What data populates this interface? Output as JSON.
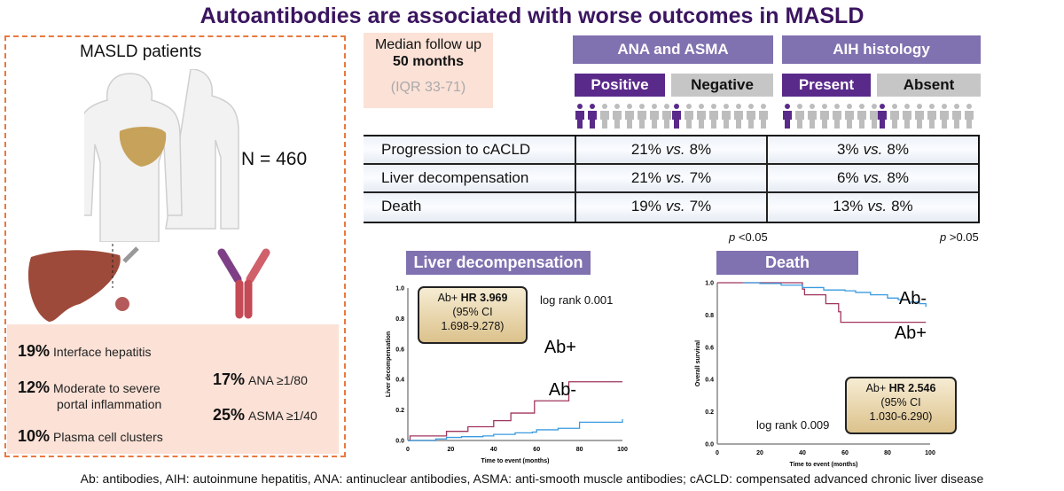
{
  "title": "Autoantibodies are associated with worse outcomes in MASLD",
  "left": {
    "heading": "MASLD patients",
    "n_label": "N = 460",
    "histology": [
      {
        "pct": "19%",
        "label": "Interface hepatitis"
      },
      {
        "pct": "12%",
        "label": "Moderate to severe",
        "label2": "portal inflammation"
      },
      {
        "pct": "10%",
        "label": "Plasma cell clusters"
      }
    ],
    "antibodies": [
      {
        "pct": "17%",
        "label": "ANA ≥1/80"
      },
      {
        "pct": "25%",
        "label": "ASMA ≥1/40"
      }
    ]
  },
  "followup": {
    "line1": "Median follow up",
    "line2": "50 months",
    "line3": "(IQR 33-71)"
  },
  "groups": [
    {
      "header": "ANA and ASMA",
      "sub": [
        "Positive",
        "Negative"
      ],
      "highlighted": [
        2,
        1
      ],
      "p": "p",
      "p_val": " <0.05"
    },
    {
      "header": "AIH histology",
      "sub": [
        "Present",
        "Absent"
      ],
      "highlighted": [
        1,
        1
      ],
      "p": "p",
      "p_val": " >0.05"
    }
  ],
  "table": {
    "vs": "vs.",
    "rows": [
      {
        "label": "Progression to cACLD",
        "g1": [
          "21%",
          "8%"
        ],
        "g2": [
          "3%",
          "8%"
        ]
      },
      {
        "label": "Liver decompensation",
        "g1": [
          "21%",
          "7%"
        ],
        "g2": [
          "6%",
          "8%"
        ]
      },
      {
        "label": "Death",
        "g1": [
          "19%",
          "7%"
        ],
        "g2": [
          "13%",
          "8%"
        ]
      }
    ]
  },
  "chart_data": [
    {
      "type": "line",
      "title": "Liver decompensation",
      "xlabel": "Time to event (months)",
      "ylabel": "Liver decompensation",
      "xlim": [
        0,
        100
      ],
      "ylim": [
        0,
        1
      ],
      "xticks": [
        "0",
        "20",
        "40",
        "60",
        "80",
        "100"
      ],
      "yticks": [
        "0.0",
        "0.2",
        "0.4",
        "0.6",
        "0.8",
        "1.0"
      ],
      "hr": {
        "prefix": "Ab+ ",
        "bold": "HR 3.969",
        "ci1": "(95% CI",
        "ci2": "1.698-9.278)"
      },
      "logrank": "log rank 0.001",
      "series": [
        {
          "name": "Ab+",
          "color": "#a0365e",
          "x": [
            0,
            1,
            18,
            28,
            40,
            48,
            59,
            75,
            100
          ],
          "y": [
            0,
            0.03,
            0.06,
            0.09,
            0.13,
            0.18,
            0.26,
            0.385,
            0.385
          ]
        },
        {
          "name": "Ab-",
          "color": "#3a9be0",
          "x": [
            0,
            13,
            18,
            25,
            35,
            40,
            50,
            58,
            60,
            70,
            80,
            98,
            100
          ],
          "y": [
            0,
            0.01,
            0.02,
            0.025,
            0.03,
            0.04,
            0.05,
            0.055,
            0.07,
            0.08,
            0.12,
            0.12,
            0.14
          ]
        }
      ]
    },
    {
      "type": "line",
      "title": "Death",
      "xlabel": "Time to event (months)",
      "ylabel": "Overall survival",
      "xlim": [
        0,
        100
      ],
      "ylim": [
        0,
        1
      ],
      "xticks": [
        "0",
        "20",
        "40",
        "60",
        "80",
        "100"
      ],
      "yticks": [
        "0.0",
        "0.2",
        "0.4",
        "0.6",
        "0.8",
        "1.0"
      ],
      "hr": {
        "prefix": "Ab+ ",
        "bold": "HR 2.546",
        "ci1": "(95% CI",
        "ci2": "1.030-6.290)"
      },
      "logrank": "log rank 0.009",
      "series": [
        {
          "name": "Ab+",
          "color": "#a0365e",
          "x": [
            0,
            39,
            40,
            41,
            50,
            51,
            57,
            58,
            98
          ],
          "y": [
            1,
            1,
            0.96,
            0.925,
            0.925,
            0.87,
            0.82,
            0.755,
            0.755
          ]
        },
        {
          "name": "Ab-",
          "color": "#3a9be0",
          "x": [
            12,
            20,
            30,
            40,
            50,
            60,
            65,
            72,
            80,
            85,
            90,
            95,
            98
          ],
          "y": [
            1,
            0.995,
            0.985,
            0.97,
            0.955,
            0.95,
            0.94,
            0.925,
            0.905,
            0.895,
            0.88,
            0.87,
            0.85
          ]
        }
      ]
    }
  ],
  "footer": "Ab: antibodies, AIH: autoinmune hepatitis, ANA: antinuclear antibodies, ASMA: anti-smooth muscle antibodies; cACLD: compensated advanced chronic liver disease"
}
